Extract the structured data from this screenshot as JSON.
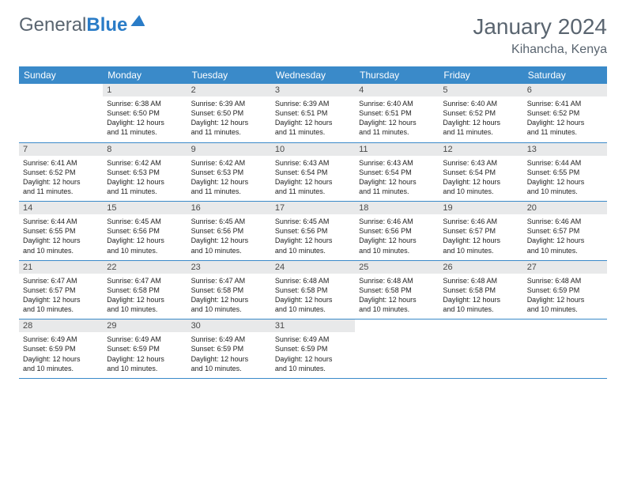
{
  "logo": {
    "part1": "General",
    "part2": "Blue"
  },
  "title": "January 2024",
  "location": "Kihancha, Kenya",
  "header_bg": "#3a8ac9",
  "header_text": "#ffffff",
  "daynum_bg": "#e8e9ea",
  "border_color": "#3a8ac9",
  "weekdays": [
    "Sunday",
    "Monday",
    "Tuesday",
    "Wednesday",
    "Thursday",
    "Friday",
    "Saturday"
  ],
  "start_offset": 1,
  "days": [
    {
      "n": 1,
      "sr": "6:38 AM",
      "ss": "6:50 PM",
      "dh": 12,
      "dm": 11
    },
    {
      "n": 2,
      "sr": "6:39 AM",
      "ss": "6:50 PM",
      "dh": 12,
      "dm": 11
    },
    {
      "n": 3,
      "sr": "6:39 AM",
      "ss": "6:51 PM",
      "dh": 12,
      "dm": 11
    },
    {
      "n": 4,
      "sr": "6:40 AM",
      "ss": "6:51 PM",
      "dh": 12,
      "dm": 11
    },
    {
      "n": 5,
      "sr": "6:40 AM",
      "ss": "6:52 PM",
      "dh": 12,
      "dm": 11
    },
    {
      "n": 6,
      "sr": "6:41 AM",
      "ss": "6:52 PM",
      "dh": 12,
      "dm": 11
    },
    {
      "n": 7,
      "sr": "6:41 AM",
      "ss": "6:52 PM",
      "dh": 12,
      "dm": 11
    },
    {
      "n": 8,
      "sr": "6:42 AM",
      "ss": "6:53 PM",
      "dh": 12,
      "dm": 11
    },
    {
      "n": 9,
      "sr": "6:42 AM",
      "ss": "6:53 PM",
      "dh": 12,
      "dm": 11
    },
    {
      "n": 10,
      "sr": "6:43 AM",
      "ss": "6:54 PM",
      "dh": 12,
      "dm": 11
    },
    {
      "n": 11,
      "sr": "6:43 AM",
      "ss": "6:54 PM",
      "dh": 12,
      "dm": 11
    },
    {
      "n": 12,
      "sr": "6:43 AM",
      "ss": "6:54 PM",
      "dh": 12,
      "dm": 10
    },
    {
      "n": 13,
      "sr": "6:44 AM",
      "ss": "6:55 PM",
      "dh": 12,
      "dm": 10
    },
    {
      "n": 14,
      "sr": "6:44 AM",
      "ss": "6:55 PM",
      "dh": 12,
      "dm": 10
    },
    {
      "n": 15,
      "sr": "6:45 AM",
      "ss": "6:56 PM",
      "dh": 12,
      "dm": 10
    },
    {
      "n": 16,
      "sr": "6:45 AM",
      "ss": "6:56 PM",
      "dh": 12,
      "dm": 10
    },
    {
      "n": 17,
      "sr": "6:45 AM",
      "ss": "6:56 PM",
      "dh": 12,
      "dm": 10
    },
    {
      "n": 18,
      "sr": "6:46 AM",
      "ss": "6:56 PM",
      "dh": 12,
      "dm": 10
    },
    {
      "n": 19,
      "sr": "6:46 AM",
      "ss": "6:57 PM",
      "dh": 12,
      "dm": 10
    },
    {
      "n": 20,
      "sr": "6:46 AM",
      "ss": "6:57 PM",
      "dh": 12,
      "dm": 10
    },
    {
      "n": 21,
      "sr": "6:47 AM",
      "ss": "6:57 PM",
      "dh": 12,
      "dm": 10
    },
    {
      "n": 22,
      "sr": "6:47 AM",
      "ss": "6:58 PM",
      "dh": 12,
      "dm": 10
    },
    {
      "n": 23,
      "sr": "6:47 AM",
      "ss": "6:58 PM",
      "dh": 12,
      "dm": 10
    },
    {
      "n": 24,
      "sr": "6:48 AM",
      "ss": "6:58 PM",
      "dh": 12,
      "dm": 10
    },
    {
      "n": 25,
      "sr": "6:48 AM",
      "ss": "6:58 PM",
      "dh": 12,
      "dm": 10
    },
    {
      "n": 26,
      "sr": "6:48 AM",
      "ss": "6:58 PM",
      "dh": 12,
      "dm": 10
    },
    {
      "n": 27,
      "sr": "6:48 AM",
      "ss": "6:59 PM",
      "dh": 12,
      "dm": 10
    },
    {
      "n": 28,
      "sr": "6:49 AM",
      "ss": "6:59 PM",
      "dh": 12,
      "dm": 10
    },
    {
      "n": 29,
      "sr": "6:49 AM",
      "ss": "6:59 PM",
      "dh": 12,
      "dm": 10
    },
    {
      "n": 30,
      "sr": "6:49 AM",
      "ss": "6:59 PM",
      "dh": 12,
      "dm": 10
    },
    {
      "n": 31,
      "sr": "6:49 AM",
      "ss": "6:59 PM",
      "dh": 12,
      "dm": 10
    }
  ],
  "labels": {
    "sunrise": "Sunrise:",
    "sunset": "Sunset:",
    "daylight": "Daylight:",
    "hours": "hours",
    "and": "and",
    "minutes": "minutes."
  }
}
